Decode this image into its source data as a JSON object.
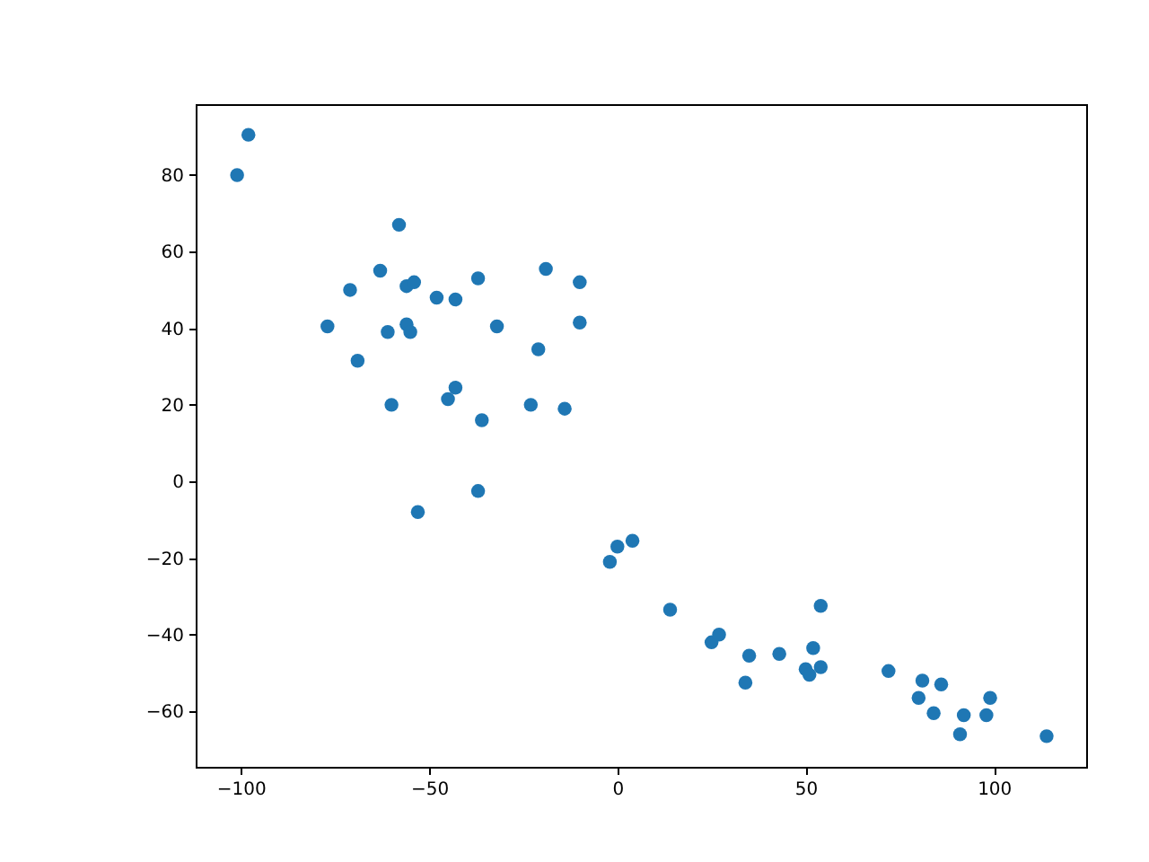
{
  "chart_data": {
    "type": "scatter",
    "marker": "circle",
    "grid": false,
    "x": [
      -101,
      -98,
      -58,
      -63,
      -71,
      -56,
      -54,
      -48,
      -43,
      -37,
      -19,
      -10,
      -77,
      -61,
      -56,
      -55,
      -32,
      -10,
      -69,
      -21,
      -60,
      -45,
      -43,
      -36,
      -23,
      -14,
      -37,
      -53,
      -2,
      0,
      4,
      14,
      25,
      27,
      34,
      35,
      43,
      50,
      51,
      52,
      54,
      54,
      72,
      80,
      81,
      84,
      86,
      91,
      92,
      98,
      99,
      114
    ],
    "series": [
      {
        "color": "#1f77b4",
        "values": [
          80,
          90.5,
          67,
          55,
          50,
          51,
          52,
          48,
          47.5,
          53,
          55.5,
          52,
          40.5,
          39,
          41,
          39,
          40.5,
          41.5,
          31.5,
          34.5,
          20,
          21.5,
          24.5,
          16,
          20,
          19,
          -2.5,
          -8,
          -21,
          -17,
          -15.5,
          -33.5,
          -42,
          -40,
          -52.5,
          -45.5,
          -45,
          -49,
          -50.5,
          -43.5,
          -32.5,
          -48.5,
          -49.5,
          -56.5,
          -52,
          -60.5,
          -53,
          -66,
          -61,
          -61,
          -56.5,
          -66.5
        ]
      }
    ],
    "xlim": [
      -112,
      124.5
    ],
    "ylim": [
      -74.5,
      98.5
    ],
    "xticks": [
      -100,
      -50,
      0,
      50,
      100
    ],
    "yticks": [
      -60,
      -40,
      -20,
      0,
      20,
      40,
      60,
      80
    ]
  }
}
